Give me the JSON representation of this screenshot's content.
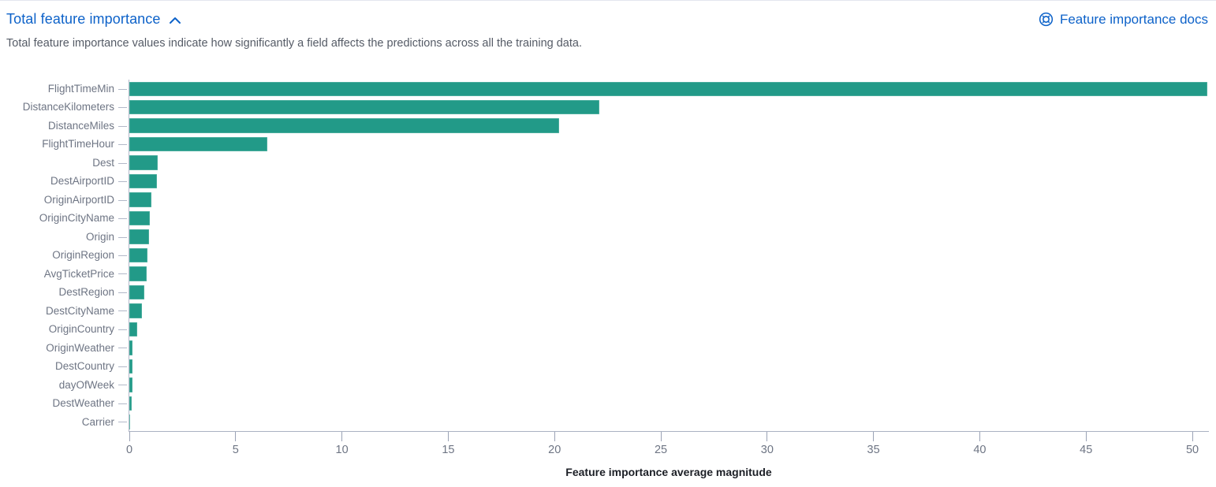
{
  "header": {
    "title": "Total feature importance",
    "docs_link_label": "Feature importance docs",
    "description": "Total feature importance values indicate how significantly a field affects the predictions across all the training data."
  },
  "colors": {
    "link_blue": "#0d62c9",
    "bar_teal": "#229a88",
    "axis_gray": "#b3b9c9",
    "label_gray": "#6e7584",
    "description_gray": "#555b66",
    "axis_title_dark": "#1c1f26"
  },
  "icons": {
    "collapse": "chevron-up-icon",
    "docs": "lifebuoy-help-icon"
  },
  "chart_data": {
    "type": "bar",
    "orientation": "horizontal",
    "title": "Total feature importance",
    "categories": [
      "FlightTimeMin",
      "DistanceKilometers",
      "DistanceMiles",
      "FlightTimeHour",
      "Dest",
      "DestAirportID",
      "OriginAirportID",
      "OriginCityName",
      "Origin",
      "OriginRegion",
      "AvgTicketPrice",
      "DestRegion",
      "DestCityName",
      "OriginCountry",
      "OriginWeather",
      "DestCountry",
      "dayOfWeek",
      "DestWeather",
      "Carrier"
    ],
    "values": [
      50.7,
      22.1,
      20.2,
      6.5,
      1.32,
      1.29,
      1.04,
      0.97,
      0.92,
      0.85,
      0.82,
      0.7,
      0.58,
      0.37,
      0.16,
      0.15,
      0.15,
      0.12,
      0.05
    ],
    "xlabel": "Feature importance average magnitude",
    "ylabel": "",
    "xticks": [
      0,
      5,
      10,
      15,
      20,
      25,
      30,
      35,
      40,
      45,
      50
    ],
    "xlim": [
      0,
      50.74
    ],
    "grid": false,
    "legend": "none",
    "bar_color": "#229a88"
  }
}
